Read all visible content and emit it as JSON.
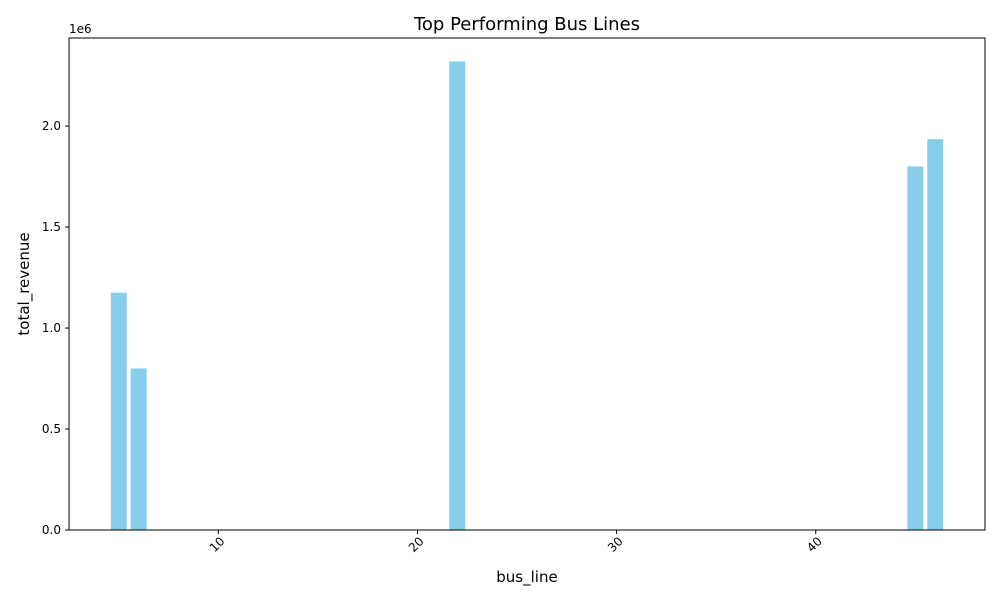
{
  "chart_data": {
    "type": "bar",
    "title": "Top Performing Bus Lines",
    "xlabel": "bus_line",
    "ylabel": "total_revenue",
    "y_offset_label": "1e6",
    "x": [
      5,
      6,
      22,
      45,
      46
    ],
    "values": [
      1175000,
      800000,
      2320000,
      1800000,
      1935000
    ],
    "xlim": [
      2.5,
      48.5
    ],
    "ylim": [
      0,
      2436000
    ],
    "x_ticks": [
      10,
      20,
      30,
      40
    ],
    "x_tick_labels": [
      "10",
      "20",
      "30",
      "40"
    ],
    "y_ticks": [
      0,
      500000,
      1000000,
      1500000,
      2000000
    ],
    "y_tick_labels": [
      "0.0",
      "0.5",
      "1.0",
      "1.5",
      "2.0"
    ],
    "x_tick_rotation": 45,
    "bar_color": "#87ceeb",
    "grid": false,
    "legend": "none"
  }
}
